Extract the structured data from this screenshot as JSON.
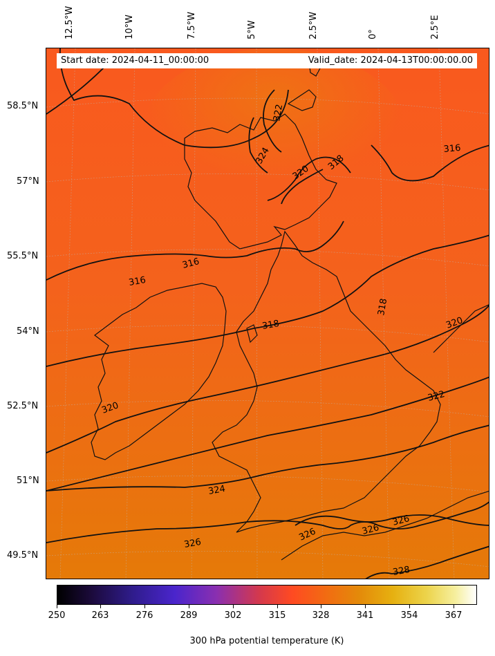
{
  "info_bar": {
    "start_date": "Start date: 2024-04-11_00:00:00",
    "valid_date": "Valid_date: 2024-04-13T00:00:00.00"
  },
  "longitude_labels": [
    "12.5°W",
    "10°W",
    "7.5°W",
    "5°W",
    "2.5°W",
    "0°",
    "2.5°E"
  ],
  "latitude_labels": [
    "58.5°N",
    "57°N",
    "55.5°N",
    "54°N",
    "52.5°N",
    "51°N",
    "49.5°N"
  ],
  "colorbar": {
    "ticks": [
      "250",
      "263",
      "276",
      "289",
      "302",
      "315",
      "328",
      "341",
      "354",
      "367"
    ],
    "title": "300 hPa potential temperature (K)",
    "range": [
      250,
      373
    ],
    "colormap": "CMRmap-like (black → blue → purple → red → orange → yellow → white)"
  },
  "field_colors": {
    "north": "#f9591e",
    "mid": "#f4621c",
    "south": "#e57a08"
  },
  "contours": [
    {
      "value": "316",
      "labels": [
        "316",
        "316",
        "316"
      ]
    },
    {
      "value": "318",
      "labels": [
        "318",
        "318",
        "318"
      ]
    },
    {
      "value": "320",
      "labels": [
        "320",
        "320",
        "320"
      ]
    },
    {
      "value": "322",
      "labels": [
        "322",
        "322"
      ]
    },
    {
      "value": "324",
      "labels": [
        "324",
        "324"
      ]
    },
    {
      "value": "326",
      "labels": [
        "326",
        "326",
        "326",
        "326"
      ]
    },
    {
      "value": "328",
      "labels": [
        "328"
      ]
    }
  ],
  "map": {
    "variable": "300 hPa potential temperature",
    "units": "K",
    "region": "British Isles and North Sea"
  }
}
